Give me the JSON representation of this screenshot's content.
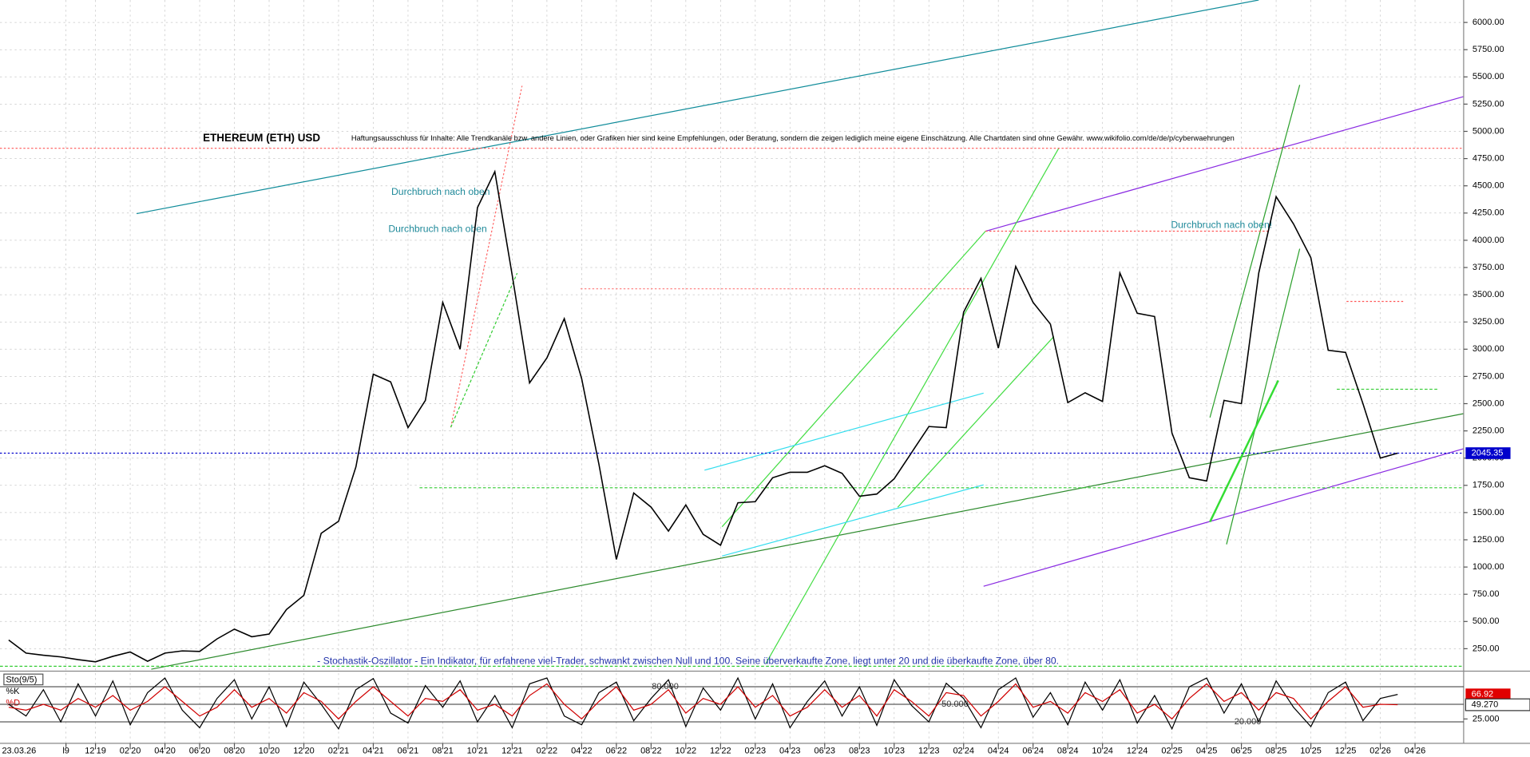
{
  "chart_data": {
    "type": "line",
    "title": "ETHEREUM (ETH) USD",
    "disclaimer": "Haftungsausschluss für Inhalte: Alle Trendkanäle bzw. andere Linien, oder Grafiken hier sind keine Empfehlungen, oder Beratung, sondern die zeigen lediglich meine eigene Einschätzung. Alle Chartdaten sind ohne Gewähr.  www.wikifolio.com/de/de/p/cyberwaehrungen",
    "annotations": [
      "Durchbruch nach oben",
      "Durchbruch nach oben",
      "Durchbruch nach oben!"
    ],
    "note": "- Stochastik-Oszillator - Ein Indikator, für erfahrene viel-Trader, schwankt zwischen Null und 100. Seine überverkaufte Zone, liegt unter 20 und die überkaufte Zone, über 80.",
    "date_stamp": "23.03.26",
    "x": [
      -5,
      -4,
      -3,
      -2,
      -1,
      0,
      1,
      2,
      3,
      4,
      5,
      6,
      7,
      8,
      9,
      10,
      11,
      12,
      13,
      14,
      15,
      16,
      17,
      18,
      19,
      20,
      21,
      22,
      23,
      24,
      25,
      26,
      27,
      28,
      29,
      30,
      31,
      32,
      33,
      34,
      35,
      36,
      37,
      38,
      39,
      40,
      41,
      42,
      43,
      44,
      45,
      46,
      47,
      48,
      49,
      50,
      51,
      52,
      53,
      54,
      55,
      56,
      57,
      58,
      59,
      60,
      61,
      62,
      63,
      64,
      65,
      66,
      67,
      68,
      69,
      70,
      71,
      72,
      73,
      74,
      75
    ],
    "series": [
      {
        "name": "ETH",
        "color": "#000000",
        "values": [
          330,
          210,
          190,
          175,
          150,
          130,
          180,
          220,
          135,
          210,
          230,
          225,
          340,
          430,
          360,
          385,
          610,
          740,
          1310,
          1420,
          1920,
          2770,
          2700,
          2280,
          2530,
          3430,
          3000,
          4300,
          4630,
          3680,
          2690,
          2920,
          3280,
          2730,
          1940,
          1070,
          1680,
          1550,
          1330,
          1570,
          1300,
          1200,
          1590,
          1600,
          1820,
          1870,
          1870,
          1930,
          1860,
          1650,
          1670,
          1810,
          2050,
          2290,
          2280,
          3340,
          3650,
          3010,
          3760,
          3430,
          3230,
          2510,
          2600,
          2520,
          3700,
          3330,
          3300,
          2230,
          1820,
          1790,
          2530,
          2500,
          3700,
          4400,
          4150,
          3840,
          2990,
          2970,
          2500,
          2000,
          2045.35
        ]
      }
    ],
    "last_price": 2045.35,
    "xlim": [
      -5.5,
      78.8
    ],
    "xticks": [
      {
        "value": -1.7,
        "label": "l9"
      },
      {
        "value": 0,
        "label": "12'19"
      },
      {
        "value": 2,
        "label": "02'20"
      },
      {
        "value": 4,
        "label": "04'20"
      },
      {
        "value": 6,
        "label": "06'20"
      },
      {
        "value": 8,
        "label": "08'20"
      },
      {
        "value": 10,
        "label": "10'20"
      },
      {
        "value": 12,
        "label": "12'20"
      },
      {
        "value": 14,
        "label": "02'21"
      },
      {
        "value": 16,
        "label": "04'21"
      },
      {
        "value": 18,
        "label": "06'21"
      },
      {
        "value": 20,
        "label": "08'21"
      },
      {
        "value": 22,
        "label": "10'21"
      },
      {
        "value": 24,
        "label": "12'21"
      },
      {
        "value": 26,
        "label": "02'22"
      },
      {
        "value": 28,
        "label": "04'22"
      },
      {
        "value": 30,
        "label": "06'22"
      },
      {
        "value": 32,
        "label": "08'22"
      },
      {
        "value": 34,
        "label": "10'22"
      },
      {
        "value": 36,
        "label": "12'22"
      },
      {
        "value": 38,
        "label": "02'23"
      },
      {
        "value": 40,
        "label": "04'23"
      },
      {
        "value": 42,
        "label": "06'23"
      },
      {
        "value": 44,
        "label": "08'23"
      },
      {
        "value": 46,
        "label": "10'23"
      },
      {
        "value": 48,
        "label": "12'23"
      },
      {
        "value": 50,
        "label": "02'24"
      },
      {
        "value": 52,
        "label": "04'24"
      },
      {
        "value": 54,
        "label": "06'24"
      },
      {
        "value": 56,
        "label": "08'24"
      },
      {
        "value": 58,
        "label": "10'24"
      },
      {
        "value": 60,
        "label": "12'24"
      },
      {
        "value": 62,
        "label": "02'25"
      },
      {
        "value": 64,
        "label": "04'25"
      },
      {
        "value": 66,
        "label": "06'25"
      },
      {
        "value": 68,
        "label": "08'25"
      },
      {
        "value": 70,
        "label": "10'25"
      },
      {
        "value": 72,
        "label": "12'25"
      },
      {
        "value": 74,
        "label": "02'26"
      },
      {
        "value": 76,
        "label": "04'26"
      }
    ],
    "ylim": [
      44,
      6206
    ],
    "yticks": [
      {
        "value": 250,
        "label": "250.00"
      },
      {
        "value": 500,
        "label": "500.00"
      },
      {
        "value": 750,
        "label": "750.00"
      },
      {
        "value": 1000,
        "label": "1000.00"
      },
      {
        "value": 1250,
        "label": "1250.00"
      },
      {
        "value": 1500,
        "label": "1500.00"
      },
      {
        "value": 1750,
        "label": "1750.00"
      },
      {
        "value": 2000,
        "label": "2000.00"
      },
      {
        "value": 2250,
        "label": "2250.00"
      },
      {
        "value": 2500,
        "label": "2500.00"
      },
      {
        "value": 2750,
        "label": "2750.00"
      },
      {
        "value": 3000,
        "label": "3000.00"
      },
      {
        "value": 3250,
        "label": "3250.00"
      },
      {
        "value": 3500,
        "label": "3500.00"
      },
      {
        "value": 3750,
        "label": "3750.00"
      },
      {
        "value": 4000,
        "label": "4000.00"
      },
      {
        "value": 4250,
        "label": "4250.00"
      },
      {
        "value": 4500,
        "label": "4500.00"
      },
      {
        "value": 4750,
        "label": "4750.00"
      },
      {
        "value": 5000,
        "label": "5000.00"
      },
      {
        "value": 5250,
        "label": "5250.00"
      },
      {
        "value": 5500,
        "label": "5500.00"
      },
      {
        "value": 5750,
        "label": "5750.00"
      },
      {
        "value": 6000,
        "label": "6000.00"
      }
    ],
    "grid": true,
    "stochastic": {
      "name": "Sto(9/5)",
      "k_name": "%K",
      "d_name": "%D",
      "k_color": "#000000",
      "d_color": "#d00000",
      "k": [
        50,
        30,
        75,
        20,
        85,
        30,
        90,
        15,
        70,
        95,
        40,
        10,
        60,
        92,
        25,
        80,
        12,
        88,
        50,
        8,
        75,
        94,
        35,
        18,
        82,
        45,
        90,
        20,
        65,
        10,
        85,
        95,
        30,
        15,
        70,
        88,
        22,
        60,
        92,
        12,
        78,
        40,
        95,
        25,
        85,
        10,
        55,
        90,
        30,
        80,
        14,
        92,
        48,
        20,
        86,
        60,
        10,
        75,
        95,
        28,
        70,
        15,
        88,
        40,
        92,
        18,
        65,
        8,
        80,
        95,
        35,
        85,
        20,
        90,
        45,
        12,
        70,
        88,
        22,
        60,
        66.92
      ],
      "d": [
        45,
        40,
        50,
        40,
        60,
        45,
        65,
        40,
        55,
        80,
        55,
        30,
        45,
        75,
        45,
        60,
        35,
        70,
        55,
        25,
        55,
        80,
        55,
        30,
        60,
        55,
        75,
        40,
        50,
        30,
        65,
        85,
        50,
        25,
        55,
        80,
        40,
        50,
        75,
        35,
        60,
        50,
        80,
        45,
        65,
        30,
        45,
        75,
        45,
        65,
        30,
        75,
        55,
        30,
        70,
        65,
        30,
        55,
        85,
        45,
        55,
        35,
        70,
        55,
        75,
        35,
        50,
        25,
        60,
        85,
        55,
        70,
        40,
        70,
        60,
        25,
        55,
        80,
        45,
        50,
        49.27
      ],
      "ylim": [
        0,
        100
      ],
      "levels": [
        {
          "value": 80,
          "label": "80.000"
        },
        {
          "value": 50,
          "label": "50.000"
        },
        {
          "value": 20,
          "label": "20.000"
        }
      ],
      "yticks": [
        {
          "value": 25,
          "label": "25.000"
        }
      ],
      "k_last": 66.92,
      "d_last": {
        "value": 49.27,
        "label": "49.270"
      }
    }
  }
}
